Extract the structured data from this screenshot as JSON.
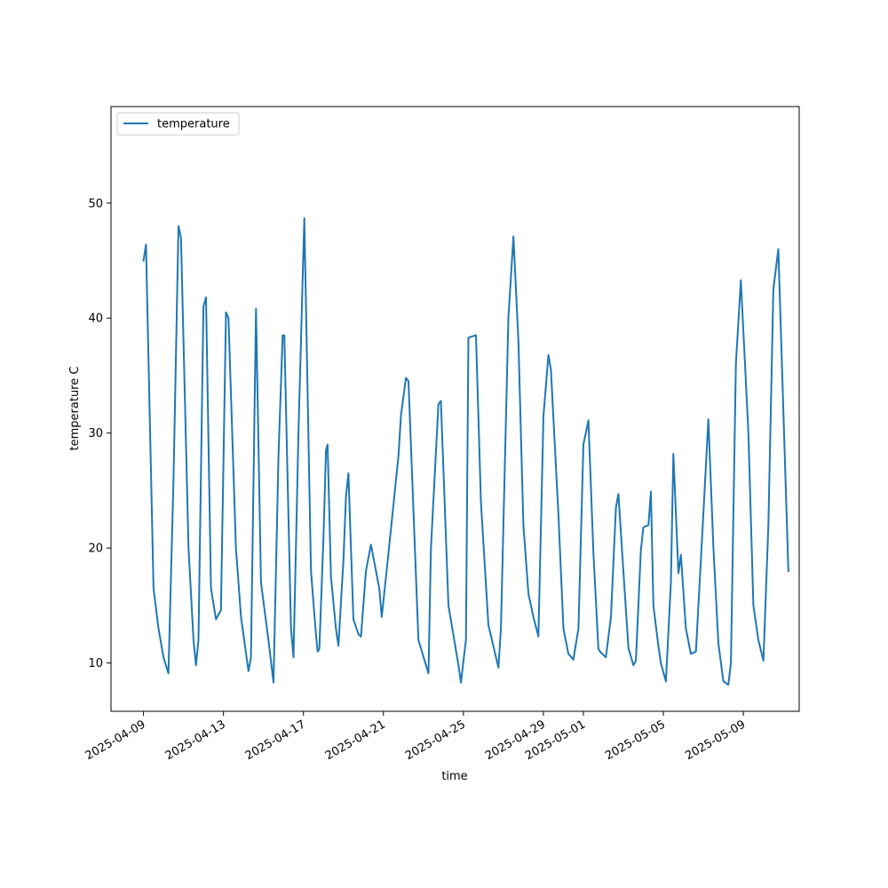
{
  "chart_data": {
    "type": "line",
    "title": "",
    "xlabel": "time",
    "ylabel": "temperature C",
    "x_range": [
      "2025-04-07T09:00",
      "2025-05-11T19:00"
    ],
    "ylim": [
      5.8,
      58.4
    ],
    "yticks": [
      10,
      20,
      30,
      40,
      50
    ],
    "xticks": [
      "2025-04-09",
      "2025-04-13",
      "2025-04-17",
      "2025-04-21",
      "2025-04-25",
      "2025-04-29",
      "2025-05-01",
      "2025-05-05",
      "2025-05-09"
    ],
    "grid": false,
    "legend": {
      "position": "top-left",
      "entries": [
        "temperature"
      ]
    },
    "series": [
      {
        "name": "temperature",
        "color": "#1f77b4",
        "points": [
          [
            "2025-04-09T00:00",
            45.0
          ],
          [
            "2025-04-09T03:00",
            46.4
          ],
          [
            "2025-04-09T12:00",
            16.5
          ],
          [
            "2025-04-09T18:00",
            13.0
          ],
          [
            "2025-04-10T00:00",
            10.5
          ],
          [
            "2025-04-10T06:00",
            9.1
          ],
          [
            "2025-04-10T12:00",
            26.0
          ],
          [
            "2025-04-10T18:00",
            48.0
          ],
          [
            "2025-04-10T21:00",
            47.0
          ],
          [
            "2025-04-11T06:00",
            20.0
          ],
          [
            "2025-04-11T12:00",
            12.0
          ],
          [
            "2025-04-11T15:00",
            9.8
          ],
          [
            "2025-04-11T18:00",
            12.0
          ],
          [
            "2025-04-12T00:00",
            41.0
          ],
          [
            "2025-04-12T03:00",
            41.8
          ],
          [
            "2025-04-12T09:00",
            16.5
          ],
          [
            "2025-04-12T15:00",
            13.8
          ],
          [
            "2025-04-12T21:00",
            14.6
          ],
          [
            "2025-04-13T03:00",
            40.5
          ],
          [
            "2025-04-13T06:00",
            40.0
          ],
          [
            "2025-04-13T15:00",
            20.0
          ],
          [
            "2025-04-13T21:00",
            14.0
          ],
          [
            "2025-04-14T06:00",
            9.3
          ],
          [
            "2025-04-14T09:00",
            10.5
          ],
          [
            "2025-04-14T15:00",
            40.8
          ],
          [
            "2025-04-14T21:00",
            17.0
          ],
          [
            "2025-04-15T06:00",
            12.0
          ],
          [
            "2025-04-15T12:00",
            8.3
          ],
          [
            "2025-04-15T18:00",
            28.0
          ],
          [
            "2025-04-15T23:00",
            38.5
          ],
          [
            "2025-04-16T01:00",
            38.5
          ],
          [
            "2025-04-16T09:00",
            13.0
          ],
          [
            "2025-04-16T12:00",
            10.5
          ],
          [
            "2025-04-16T18:00",
            30.0
          ],
          [
            "2025-04-17T01:00",
            48.7
          ],
          [
            "2025-04-17T09:00",
            18.0
          ],
          [
            "2025-04-17T15:00",
            12.5
          ],
          [
            "2025-04-17T17:00",
            11.0
          ],
          [
            "2025-04-17T19:00",
            11.2
          ],
          [
            "2025-04-18T00:00",
            21.0
          ],
          [
            "2025-04-18T03:00",
            28.5
          ],
          [
            "2025-04-18T05:00",
            29.0
          ],
          [
            "2025-04-18T09:00",
            17.5
          ],
          [
            "2025-04-18T15:00",
            13.0
          ],
          [
            "2025-04-18T18:00",
            11.5
          ],
          [
            "2025-04-19T00:00",
            19.0
          ],
          [
            "2025-04-19T03:00",
            24.5
          ],
          [
            "2025-04-19T06:00",
            26.5
          ],
          [
            "2025-04-19T09:00",
            20.0
          ],
          [
            "2025-04-19T12:00",
            13.8
          ],
          [
            "2025-04-19T18:00",
            12.5
          ],
          [
            "2025-04-19T21:00",
            12.3
          ],
          [
            "2025-04-20T03:00",
            18.0
          ],
          [
            "2025-04-20T09:00",
            20.3
          ],
          [
            "2025-04-20T15:00",
            18.0
          ],
          [
            "2025-04-20T19:00",
            16.5
          ],
          [
            "2025-04-20T22:00",
            14.0
          ],
          [
            "2025-04-21T06:00",
            19.5
          ],
          [
            "2025-04-21T18:00",
            28.0
          ],
          [
            "2025-04-21T21:00",
            31.5
          ],
          [
            "2025-04-22T03:00",
            34.8
          ],
          [
            "2025-04-22T06:00",
            34.5
          ],
          [
            "2025-04-22T18:00",
            12.0
          ],
          [
            "2025-04-23T06:00",
            9.1
          ],
          [
            "2025-04-23T09:00",
            20.0
          ],
          [
            "2025-04-23T18:00",
            32.5
          ],
          [
            "2025-04-23T21:00",
            32.8
          ],
          [
            "2025-04-24T06:00",
            15.0
          ],
          [
            "2025-04-24T18:00",
            9.8
          ],
          [
            "2025-04-24T21:00",
            8.3
          ],
          [
            "2025-04-25T03:00",
            12.0
          ],
          [
            "2025-04-25T06:00",
            38.3
          ],
          [
            "2025-04-25T15:00",
            38.5
          ],
          [
            "2025-04-25T21:00",
            24.0
          ],
          [
            "2025-04-26T06:00",
            13.3
          ],
          [
            "2025-04-26T18:00",
            9.6
          ],
          [
            "2025-04-26T21:00",
            13.0
          ],
          [
            "2025-04-27T06:00",
            40.0
          ],
          [
            "2025-04-27T12:00",
            47.1
          ],
          [
            "2025-04-27T18:00",
            38.0
          ],
          [
            "2025-04-28T00:00",
            22.0
          ],
          [
            "2025-04-28T06:00",
            16.0
          ],
          [
            "2025-04-28T12:00",
            14.0
          ],
          [
            "2025-04-28T18:00",
            12.3
          ],
          [
            "2025-04-29T00:00",
            31.5
          ],
          [
            "2025-04-29T06:00",
            36.8
          ],
          [
            "2025-04-29T09:00",
            35.5
          ],
          [
            "2025-04-29T18:00",
            23.0
          ],
          [
            "2025-04-30T00:00",
            13.0
          ],
          [
            "2025-04-30T06:00",
            10.8
          ],
          [
            "2025-04-30T12:00",
            10.3
          ],
          [
            "2025-04-30T18:00",
            13.0
          ],
          [
            "2025-05-01T00:00",
            29.0
          ],
          [
            "2025-05-01T06:00",
            31.1
          ],
          [
            "2025-05-01T12:00",
            19.5
          ],
          [
            "2025-05-01T18:00",
            11.2
          ],
          [
            "2025-05-01T21:00",
            10.9
          ],
          [
            "2025-05-02T03:00",
            10.5
          ],
          [
            "2025-05-02T09:00",
            14.0
          ],
          [
            "2025-05-02T15:00",
            23.5
          ],
          [
            "2025-05-02T18:00",
            24.7
          ],
          [
            "2025-05-03T00:00",
            18.0
          ],
          [
            "2025-05-03T06:00",
            11.3
          ],
          [
            "2025-05-03T12:00",
            9.8
          ],
          [
            "2025-05-03T15:00",
            10.2
          ],
          [
            "2025-05-03T21:00",
            19.8
          ],
          [
            "2025-05-04T00:00",
            21.8
          ],
          [
            "2025-05-04T06:00",
            22.0
          ],
          [
            "2025-05-04T09:00",
            24.9
          ],
          [
            "2025-05-04T12:00",
            15.0
          ],
          [
            "2025-05-04T18:00",
            11.5
          ],
          [
            "2025-05-04T21:00",
            10.0
          ],
          [
            "2025-05-05T03:00",
            8.4
          ],
          [
            "2025-05-05T09:00",
            17.0
          ],
          [
            "2025-05-05T12:00",
            28.2
          ],
          [
            "2025-05-05T18:00",
            17.8
          ],
          [
            "2025-05-05T21:00",
            19.4
          ],
          [
            "2025-05-06T03:00",
            13.0
          ],
          [
            "2025-05-06T09:00",
            10.8
          ],
          [
            "2025-05-06T15:00",
            11.0
          ],
          [
            "2025-05-07T00:00",
            23.0
          ],
          [
            "2025-05-07T06:00",
            31.2
          ],
          [
            "2025-05-07T12:00",
            20.0
          ],
          [
            "2025-05-07T18:00",
            11.7
          ],
          [
            "2025-05-08T00:00",
            8.4
          ],
          [
            "2025-05-08T06:00",
            8.1
          ],
          [
            "2025-05-08T09:00",
            10.0
          ],
          [
            "2025-05-08T15:00",
            36.0
          ],
          [
            "2025-05-08T21:00",
            43.3
          ],
          [
            "2025-05-09T06:00",
            30.0
          ],
          [
            "2025-05-09T12:00",
            15.0
          ],
          [
            "2025-05-09T18:00",
            12.0
          ],
          [
            "2025-05-10T00:00",
            10.2
          ],
          [
            "2025-05-10T06:00",
            22.0
          ],
          [
            "2025-05-10T12:00",
            42.5
          ],
          [
            "2025-05-10T18:00",
            46.0
          ],
          [
            "2025-05-11T06:00",
            18.0
          ]
        ]
      }
    ]
  }
}
